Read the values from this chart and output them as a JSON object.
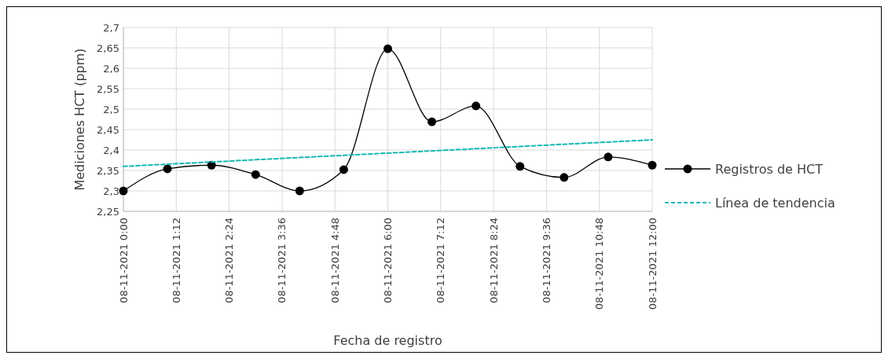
{
  "chart_data": {
    "type": "line",
    "xlabel": "Fecha de registro",
    "ylabel": "Mediciones HCT (ppm)",
    "x": [
      "2021-11-08T00:00",
      "2021-11-08T01:00",
      "2021-11-08T02:00",
      "2021-11-08T03:00",
      "2021-11-08T04:00",
      "2021-11-08T05:00",
      "2021-11-08T06:00",
      "2021-11-08T07:00",
      "2021-11-08T08:00",
      "2021-11-08T09:00",
      "2021-11-08T10:00",
      "2021-11-08T11:00",
      "2021-11-08T12:00"
    ],
    "series": [
      {
        "name": "Registros de HCT",
        "color": "#000000",
        "values": [
          2.3,
          2.354,
          2.363,
          2.34,
          2.3,
          2.352,
          2.648,
          2.469,
          2.508,
          2.36,
          2.333,
          2.383,
          2.363
        ],
        "marker": "circle",
        "line_style": "solid"
      },
      {
        "name": "Línea de tendencia",
        "color": "#17b8b3",
        "type": "line",
        "x": [
          "2021-11-08T00:00",
          "2021-11-08T12:00"
        ],
        "values": [
          2.36,
          2.425
        ],
        "marker": "none",
        "line_style": "dashed"
      }
    ],
    "xlim": [
      "2021-11-08T00:00",
      "2021-11-08T12:00"
    ],
    "xticks": [
      {
        "value": "2021-11-08T00:00",
        "label": "08-11-2021 0:00"
      },
      {
        "value": "2021-11-08T01:12",
        "label": "08-11-2021 1:12"
      },
      {
        "value": "2021-11-08T02:24",
        "label": "08-11-2021 2:24"
      },
      {
        "value": "2021-11-08T03:36",
        "label": "08-11-2021 3:36"
      },
      {
        "value": "2021-11-08T04:48",
        "label": "08-11-2021 4:48"
      },
      {
        "value": "2021-11-08T06:00",
        "label": "08-11-2021 6:00"
      },
      {
        "value": "2021-11-08T07:12",
        "label": "08-11-2021 7:12"
      },
      {
        "value": "2021-11-08T08:24",
        "label": "08-11-2021 8:24"
      },
      {
        "value": "2021-11-08T09:36",
        "label": "08-11-2021 9:36"
      },
      {
        "value": "2021-11-08T10:48",
        "label": "08-11-2021 10:48"
      },
      {
        "value": "2021-11-08T12:00",
        "label": "08-11-2021 12:00"
      }
    ],
    "ylim": [
      2.25,
      2.7
    ],
    "yticks": [
      {
        "value": 2.25,
        "label": "2,25"
      },
      {
        "value": 2.3,
        "label": "2,3"
      },
      {
        "value": 2.35,
        "label": "2,35"
      },
      {
        "value": 2.4,
        "label": "2,4"
      },
      {
        "value": 2.45,
        "label": "2,45"
      },
      {
        "value": 2.5,
        "label": "2,5"
      },
      {
        "value": 2.55,
        "label": "2,55"
      },
      {
        "value": 2.6,
        "label": "2,6"
      },
      {
        "value": 2.65,
        "label": "2,65"
      },
      {
        "value": 2.7,
        "label": "2,7"
      }
    ],
    "grid": true,
    "legend": "right"
  }
}
